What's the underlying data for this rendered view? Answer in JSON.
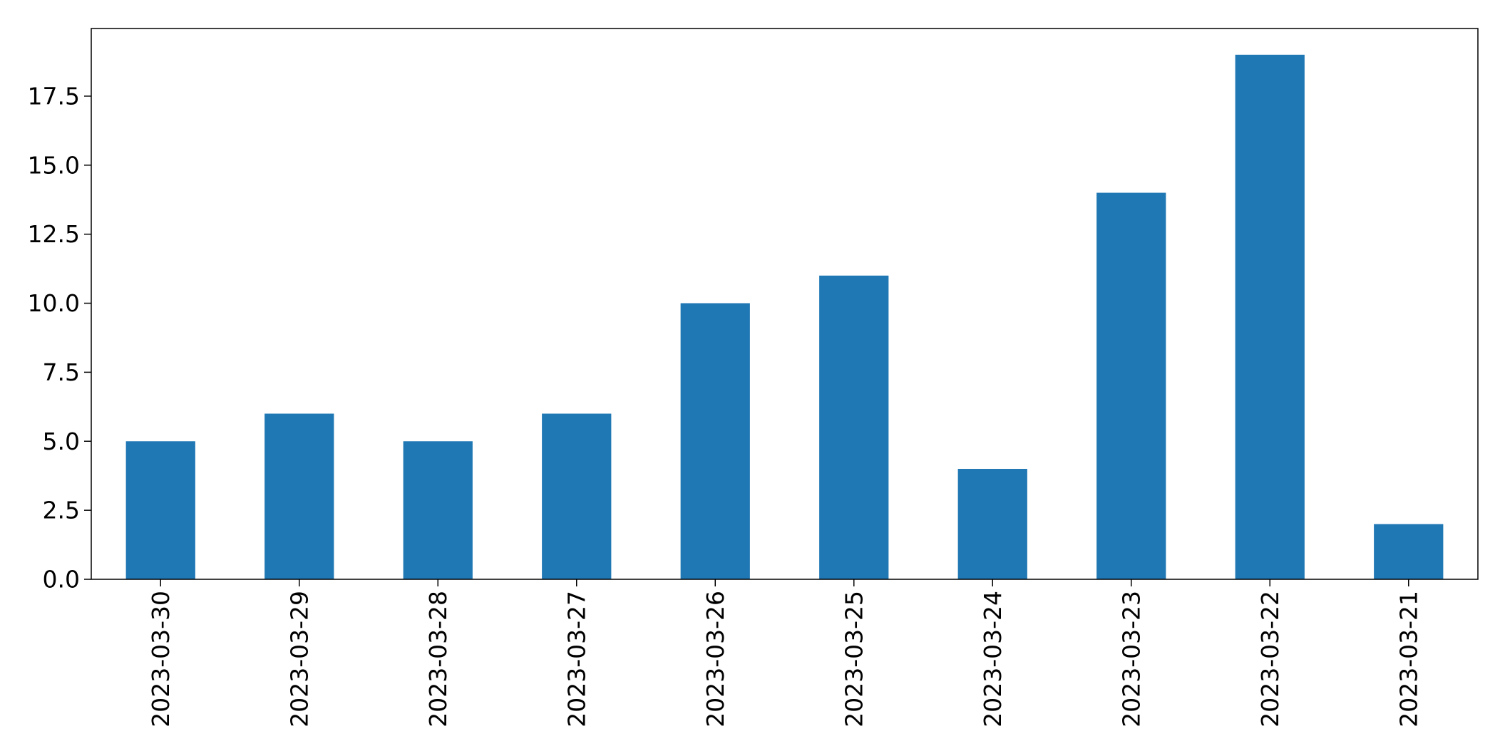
{
  "chart_data": {
    "type": "bar",
    "title": "",
    "xlabel": "",
    "ylabel": "",
    "categories": [
      "2023-03-30",
      "2023-03-29",
      "2023-03-28",
      "2023-03-27",
      "2023-03-26",
      "2023-03-25",
      "2023-03-24",
      "2023-03-23",
      "2023-03-22",
      "2023-03-21"
    ],
    "values": [
      5,
      6,
      5,
      6,
      10,
      11,
      4,
      14,
      19,
      2
    ],
    "ylim": [
      0,
      19.95
    ],
    "yticks": [
      "0.0",
      "2.5",
      "5.0",
      "7.5",
      "10.0",
      "12.5",
      "15.0",
      "17.5"
    ],
    "grid": false,
    "bar_color": "#1f77b4"
  }
}
